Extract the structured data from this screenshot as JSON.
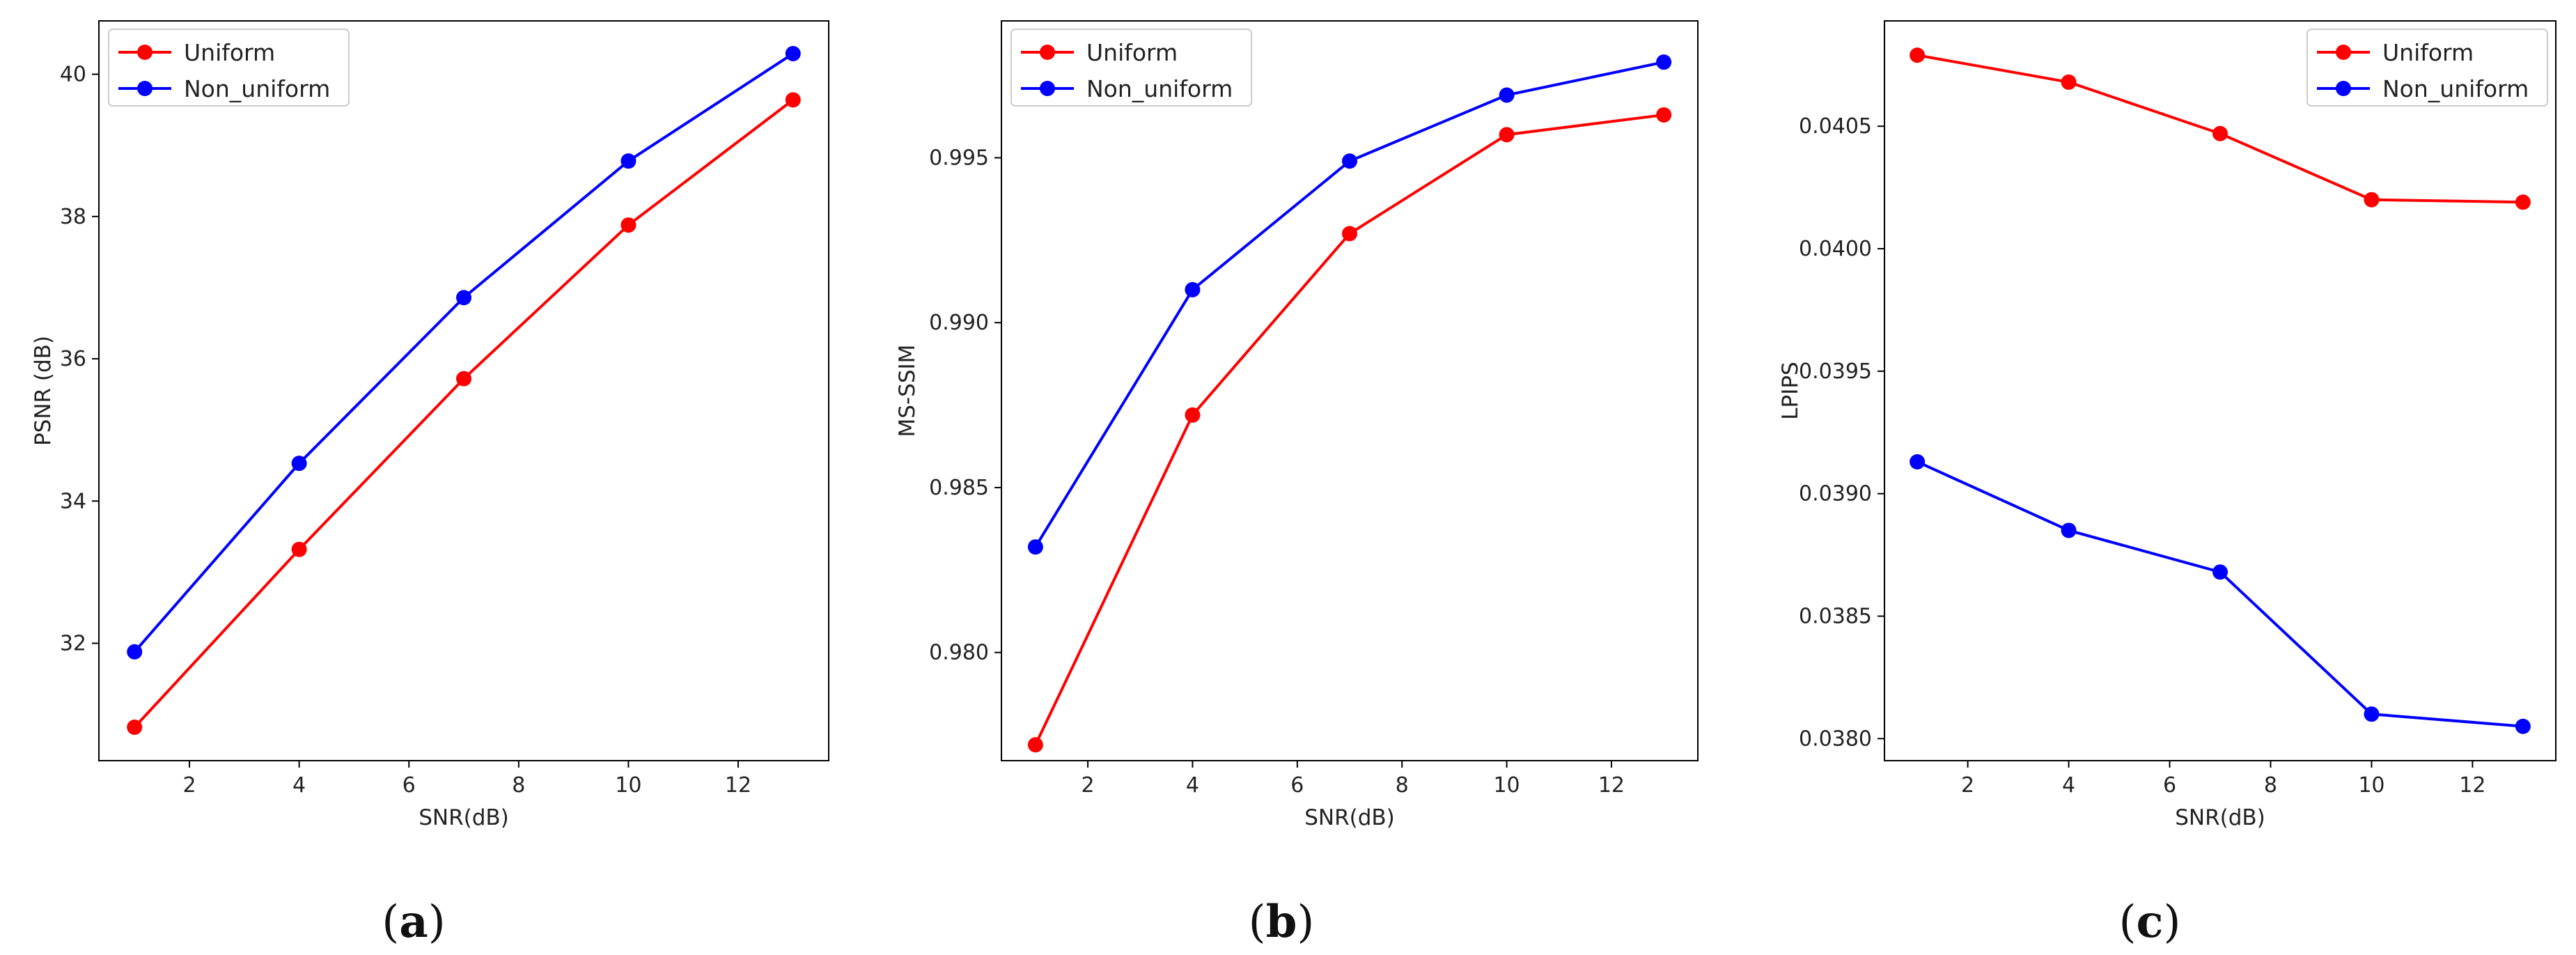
{
  "chart_data": [
    {
      "type": "line",
      "caption": "a",
      "xlabel": "SNR(dB)",
      "ylabel": "PSNR (dB)",
      "x": [
        1,
        4,
        7,
        10,
        13
      ],
      "xlim": [
        0.35,
        13.65
      ],
      "ylim": [
        30.35,
        40.75
      ],
      "xticks": [
        2,
        4,
        6,
        8,
        10,
        12
      ],
      "yticks": [
        32,
        34,
        36,
        38,
        40
      ],
      "yticklabels": [
        "32",
        "34",
        "36",
        "38",
        "40"
      ],
      "legend": "top-left",
      "series": [
        {
          "name": "Uniform",
          "color": "#ff0000",
          "values": [
            30.82,
            33.32,
            35.72,
            37.88,
            39.64
          ]
        },
        {
          "name": "Non_uniform",
          "color": "#0000ff",
          "values": [
            31.88,
            34.53,
            36.86,
            38.78,
            40.29
          ]
        }
      ]
    },
    {
      "type": "line",
      "caption": "b",
      "xlabel": "SNR(dB)",
      "ylabel": "MS-SSIM",
      "x": [
        1,
        4,
        7,
        10,
        13
      ],
      "xlim": [
        0.35,
        13.65
      ],
      "ylim": [
        0.97672,
        0.99915
      ],
      "xticks": [
        2,
        4,
        6,
        8,
        10,
        12
      ],
      "yticks": [
        0.98,
        0.985,
        0.99,
        0.995
      ],
      "yticklabels": [
        "0.980",
        "0.985",
        "0.990",
        "0.995"
      ],
      "legend": "top-left",
      "series": [
        {
          "name": "Uniform",
          "color": "#ff0000",
          "values": [
            0.9772,
            0.9872,
            0.9927,
            0.9957,
            0.9963
          ]
        },
        {
          "name": "Non_uniform",
          "color": "#0000ff",
          "values": [
            0.9832,
            0.991,
            0.9949,
            0.9969,
            0.9979
          ]
        }
      ]
    },
    {
      "type": "line",
      "caption": "c",
      "xlabel": "SNR(dB)",
      "ylabel": "LPIPS",
      "x": [
        1,
        4,
        7,
        10,
        13
      ],
      "xlim": [
        0.35,
        13.65
      ],
      "ylim": [
        0.03791,
        0.04093
      ],
      "xticks": [
        2,
        4,
        6,
        8,
        10,
        12
      ],
      "yticks": [
        0.038,
        0.0385,
        0.039,
        0.0395,
        0.04,
        0.0405
      ],
      "yticklabels": [
        "0.0380",
        "0.0385",
        "0.0390",
        "0.0395",
        "0.0400",
        "0.0405"
      ],
      "legend": "top-right",
      "series": [
        {
          "name": "Uniform",
          "color": "#ff0000",
          "values": [
            0.04079,
            0.04068,
            0.04047,
            0.0402,
            0.04019
          ]
        },
        {
          "name": "Non_uniform",
          "color": "#0000ff",
          "values": [
            0.03913,
            0.03885,
            0.03868,
            0.0381,
            0.03805
          ]
        }
      ]
    }
  ]
}
